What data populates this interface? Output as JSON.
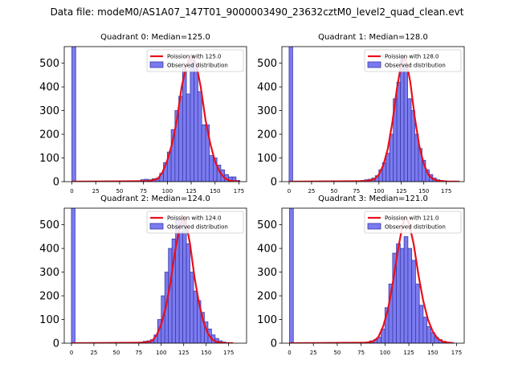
{
  "figure": {
    "suptitle": "Data file: modeM0/AS1A07_147T01_9000003490_23632cztM0_level2_quad_clean.evt"
  },
  "chart_data": [
    {
      "type": "bar",
      "title": "Quadrant 0: Median=125.0",
      "median": 125.0,
      "xlim": [
        -8,
        183
      ],
      "ylim": [
        0,
        570
      ],
      "xticks": [
        0,
        25,
        50,
        75,
        100,
        125,
        150,
        175
      ],
      "yticks": [
        0,
        100,
        200,
        300,
        400,
        500
      ],
      "bin_width": 4,
      "bins": [
        [
          0,
          1000
        ],
        [
          4,
          0
        ],
        [
          64,
          2
        ],
        [
          68,
          3
        ],
        [
          72,
          8
        ],
        [
          76,
          10
        ],
        [
          80,
          8
        ],
        [
          84,
          12
        ],
        [
          88,
          15
        ],
        [
          92,
          35
        ],
        [
          96,
          80
        ],
        [
          100,
          125
        ],
        [
          104,
          220
        ],
        [
          108,
          300
        ],
        [
          112,
          360
        ],
        [
          116,
          480
        ],
        [
          120,
          370
        ],
        [
          124,
          535
        ],
        [
          128,
          500
        ],
        [
          132,
          380
        ],
        [
          136,
          240
        ],
        [
          140,
          240
        ],
        [
          144,
          110
        ],
        [
          148,
          100
        ],
        [
          152,
          70
        ],
        [
          156,
          50
        ],
        [
          160,
          30
        ],
        [
          164,
          20
        ],
        [
          168,
          20
        ],
        [
          172,
          5
        ]
      ],
      "poisson_curve": [
        [
          0,
          0
        ],
        [
          80,
          2
        ],
        [
          90,
          12
        ],
        [
          95,
          40
        ],
        [
          100,
          90
        ],
        [
          105,
          160
        ],
        [
          110,
          260
        ],
        [
          115,
          400
        ],
        [
          120,
          490
        ],
        [
          125,
          535
        ],
        [
          130,
          500
        ],
        [
          135,
          400
        ],
        [
          140,
          260
        ],
        [
          145,
          160
        ],
        [
          150,
          85
        ],
        [
          155,
          40
        ],
        [
          160,
          15
        ],
        [
          165,
          5
        ],
        [
          170,
          2
        ],
        [
          175,
          0
        ]
      ],
      "legend": [
        "Poission with 125.0",
        "Observed distribution"
      ],
      "legend_position": "top-right",
      "colors": {
        "bars": "#7b7bf0",
        "bar_edge": "#3a3aa8",
        "curve": "#e8101a"
      }
    },
    {
      "type": "bar",
      "title": "Quadrant 1: Median=128.0",
      "median": 128.0,
      "xlim": [
        -8,
        195
      ],
      "ylim": [
        0,
        570
      ],
      "xticks": [
        0,
        25,
        50,
        75,
        100,
        125,
        150,
        175
      ],
      "yticks": [
        0,
        100,
        200,
        300,
        400,
        500
      ],
      "bin_width": 4,
      "bins": [
        [
          0,
          1000
        ],
        [
          4,
          0
        ],
        [
          72,
          2
        ],
        [
          80,
          5
        ],
        [
          84,
          8
        ],
        [
          88,
          10
        ],
        [
          92,
          15
        ],
        [
          96,
          25
        ],
        [
          100,
          50
        ],
        [
          104,
          80
        ],
        [
          108,
          120
        ],
        [
          112,
          200
        ],
        [
          116,
          350
        ],
        [
          120,
          420
        ],
        [
          124,
          530
        ],
        [
          128,
          480
        ],
        [
          132,
          350
        ],
        [
          136,
          300
        ],
        [
          140,
          200
        ],
        [
          144,
          140
        ],
        [
          148,
          90
        ],
        [
          152,
          50
        ],
        [
          156,
          30
        ],
        [
          160,
          15
        ],
        [
          164,
          8
        ],
        [
          168,
          5
        ],
        [
          172,
          3
        ]
      ],
      "poisson_curve": [
        [
          0,
          0
        ],
        [
          85,
          2
        ],
        [
          95,
          10
        ],
        [
          100,
          30
        ],
        [
          105,
          70
        ],
        [
          110,
          140
        ],
        [
          115,
          250
        ],
        [
          120,
          390
        ],
        [
          125,
          500
        ],
        [
          128,
          530
        ],
        [
          131,
          500
        ],
        [
          135,
          420
        ],
        [
          140,
          270
        ],
        [
          145,
          150
        ],
        [
          150,
          75
        ],
        [
          155,
          30
        ],
        [
          160,
          12
        ],
        [
          165,
          4
        ],
        [
          175,
          1
        ],
        [
          190,
          0
        ]
      ],
      "legend": [
        "Poission with 128.0",
        "Observed distribution"
      ],
      "legend_position": "top-right",
      "colors": {
        "bars": "#7b7bf0",
        "bar_edge": "#3a3aa8",
        "curve": "#e8101a"
      }
    },
    {
      "type": "bar",
      "title": "Quadrant 2: Median=124.0",
      "median": 124.0,
      "xlim": [
        -8,
        195
      ],
      "ylim": [
        0,
        570
      ],
      "xticks": [
        0,
        25,
        50,
        75,
        100,
        125,
        150,
        175
      ],
      "yticks": [
        0,
        100,
        200,
        300,
        400,
        500
      ],
      "bin_width": 4,
      "bins": [
        [
          0,
          1000
        ],
        [
          4,
          0
        ],
        [
          72,
          2
        ],
        [
          76,
          5
        ],
        [
          80,
          8
        ],
        [
          84,
          10
        ],
        [
          88,
          15
        ],
        [
          92,
          35
        ],
        [
          96,
          100
        ],
        [
          100,
          200
        ],
        [
          104,
          300
        ],
        [
          108,
          400
        ],
        [
          112,
          440
        ],
        [
          116,
          520
        ],
        [
          120,
          470
        ],
        [
          124,
          520
        ],
        [
          128,
          420
        ],
        [
          132,
          300
        ],
        [
          136,
          220
        ],
        [
          140,
          180
        ],
        [
          144,
          130
        ],
        [
          148,
          90
        ],
        [
          152,
          60
        ],
        [
          156,
          35
        ],
        [
          160,
          20
        ],
        [
          164,
          10
        ],
        [
          168,
          5
        ],
        [
          172,
          2
        ]
      ],
      "poisson_curve": [
        [
          0,
          0
        ],
        [
          80,
          2
        ],
        [
          90,
          10
        ],
        [
          95,
          35
        ],
        [
          100,
          80
        ],
        [
          105,
          150
        ],
        [
          110,
          250
        ],
        [
          115,
          380
        ],
        [
          120,
          480
        ],
        [
          124,
          535
        ],
        [
          128,
          500
        ],
        [
          132,
          420
        ],
        [
          137,
          280
        ],
        [
          142,
          170
        ],
        [
          147,
          90
        ],
        [
          152,
          40
        ],
        [
          157,
          15
        ],
        [
          162,
          5
        ],
        [
          170,
          1
        ],
        [
          180,
          0
        ]
      ],
      "legend": [
        "Poission with 124.0",
        "Observed distribution"
      ],
      "legend_position": "top-right",
      "colors": {
        "bars": "#7b7bf0",
        "bar_edge": "#3a3aa8",
        "curve": "#e8101a"
      }
    },
    {
      "type": "bar",
      "title": "Quadrant 3: Median=121.0",
      "median": 121.0,
      "xlim": [
        -8,
        183
      ],
      "ylim": [
        0,
        570
      ],
      "xticks": [
        0,
        25,
        50,
        75,
        100,
        125,
        150,
        175
      ],
      "yticks": [
        0,
        100,
        200,
        300,
        400,
        500
      ],
      "bin_width": 4,
      "bins": [
        [
          0,
          1000
        ],
        [
          4,
          0
        ],
        [
          76,
          2
        ],
        [
          80,
          5
        ],
        [
          84,
          10
        ],
        [
          88,
          15
        ],
        [
          92,
          25
        ],
        [
          96,
          60
        ],
        [
          100,
          150
        ],
        [
          104,
          250
        ],
        [
          108,
          380
        ],
        [
          112,
          420
        ],
        [
          116,
          400
        ],
        [
          120,
          450
        ],
        [
          124,
          400
        ],
        [
          128,
          350
        ],
        [
          132,
          250
        ],
        [
          136,
          160
        ],
        [
          140,
          110
        ],
        [
          144,
          70
        ],
        [
          148,
          45
        ],
        [
          152,
          25
        ],
        [
          156,
          15
        ],
        [
          160,
          8
        ],
        [
          164,
          4
        ],
        [
          168,
          2
        ]
      ],
      "poisson_curve": [
        [
          0,
          0
        ],
        [
          80,
          2
        ],
        [
          88,
          8
        ],
        [
          93,
          25
        ],
        [
          98,
          70
        ],
        [
          103,
          140
        ],
        [
          108,
          250
        ],
        [
          113,
          380
        ],
        [
          118,
          490
        ],
        [
          121,
          535
        ],
        [
          125,
          510
        ],
        [
          130,
          420
        ],
        [
          135,
          290
        ],
        [
          140,
          180
        ],
        [
          145,
          100
        ],
        [
          150,
          50
        ],
        [
          155,
          20
        ],
        [
          160,
          8
        ],
        [
          165,
          3
        ],
        [
          172,
          0
        ]
      ],
      "legend": [
        "Poission with 121.0",
        "Observed distribution"
      ],
      "legend_position": "top-right",
      "colors": {
        "bars": "#7b7bf0",
        "bar_edge": "#3a3aa8",
        "curve": "#e8101a"
      }
    }
  ]
}
